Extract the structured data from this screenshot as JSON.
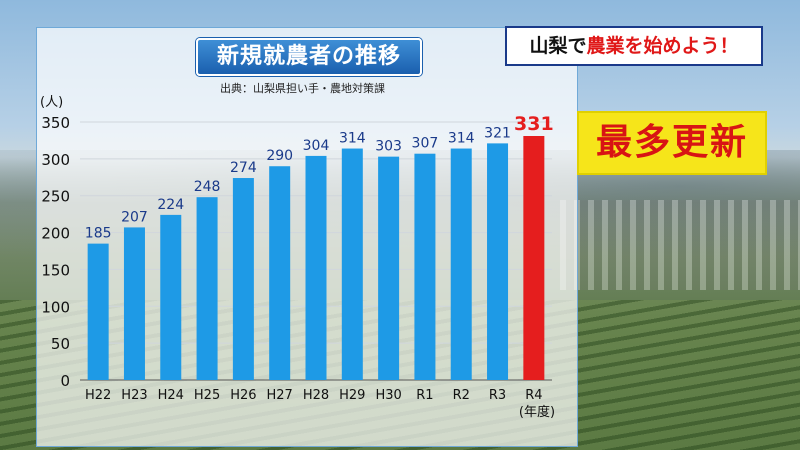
{
  "header": {
    "title": "新規就農者の推移",
    "source": "出典：山梨県担い手・農地対策課",
    "banner_place": "山梨で",
    "banner_highlight": "農業を始めよう！",
    "record_label": "最多更新"
  },
  "colors": {
    "bar": "#1e9ae6",
    "highlight_bar": "#e51e1e",
    "title_bg": "#2a72c4",
    "record_bg": "#f6e51a",
    "record_text": "#d81414"
  },
  "chart_data": {
    "type": "bar",
    "title": "新規就農者の推移",
    "xlabel": "(年度)",
    "ylabel": "(人)",
    "ylim": [
      0,
      350
    ],
    "yticks": [
      0,
      50,
      100,
      150,
      200,
      250,
      300,
      350
    ],
    "grid": true,
    "categories": [
      "H22",
      "H23",
      "H24",
      "H25",
      "H26",
      "H27",
      "H28",
      "H29",
      "H30",
      "R1",
      "R2",
      "R3",
      "R4"
    ],
    "values": [
      185,
      207,
      224,
      248,
      274,
      290,
      304,
      314,
      303,
      307,
      314,
      321,
      331
    ],
    "highlight": "R4"
  }
}
